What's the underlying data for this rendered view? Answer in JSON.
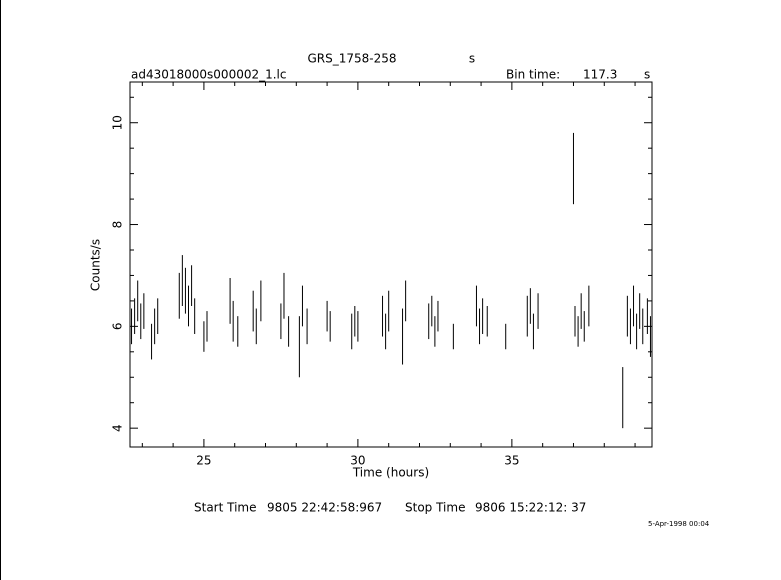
{
  "chart_data": {
    "type": "errorbar",
    "title": "GRS_1758-258",
    "title_unit": "s",
    "file_name": "ad43018000s000002_1.lc",
    "bin_time_label": "Bin time:",
    "bin_time": "117.3",
    "bin_time_unit": "s",
    "x_label": "Time (hours)",
    "y_label": "Counts/s",
    "start_label": "Start Time",
    "start_time": "9805 22:42:58:967",
    "stop_label": "Stop Time",
    "stop_time": "9806 15:22:12: 37",
    "date_stamp": "5-Apr-1998 00:04",
    "color": "#000000",
    "xlim": [
      22.6,
      39.55
    ],
    "ylim": [
      3.63,
      10.8
    ],
    "xticks": [
      25,
      30,
      35
    ],
    "yticks": [
      4,
      6,
      8,
      10
    ],
    "xminorticks": [
      23,
      24,
      26,
      27,
      28,
      29,
      31,
      32,
      33,
      34,
      36,
      37,
      38,
      39
    ],
    "yminorticks": [
      4.5,
      5,
      5.5,
      6.5,
      7,
      7.5,
      8.5,
      9,
      9.5,
      10.5
    ],
    "x": [
      22.65,
      22.75,
      22.85,
      22.95,
      23.05,
      23.3,
      23.4,
      23.5,
      24.2,
      24.3,
      24.4,
      24.5,
      24.6,
      24.7,
      25.0,
      25.1,
      25.85,
      25.95,
      26.1,
      26.6,
      26.7,
      26.85,
      27.5,
      27.6,
      27.75,
      28.1,
      28.2,
      28.35,
      29.0,
      29.1,
      29.8,
      29.9,
      30.0,
      30.8,
      30.9,
      31.0,
      31.45,
      31.55,
      32.3,
      32.4,
      32.5,
      32.6,
      33.1,
      33.85,
      33.95,
      34.05,
      34.2,
      34.8,
      35.5,
      35.6,
      35.7,
      35.85,
      37.0,
      37.05,
      37.15,
      37.25,
      37.35,
      37.5,
      38.6,
      38.75,
      38.85,
      38.95,
      39.05,
      39.15,
      39.25,
      39.4,
      39.5
    ],
    "values": [
      6.0,
      6.2,
      6.5,
      6.1,
      6.3,
      5.7,
      6.0,
      6.2,
      6.6,
      6.9,
      6.7,
      6.4,
      6.8,
      6.2,
      5.8,
      6.0,
      6.5,
      6.1,
      5.9,
      6.3,
      6.0,
      6.5,
      6.1,
      6.6,
      5.9,
      5.6,
      6.4,
      6.0,
      6.2,
      6.0,
      5.9,
      6.1,
      6.0,
      6.2,
      5.9,
      6.3,
      5.8,
      6.5,
      6.1,
      6.3,
      5.9,
      6.2,
      5.8,
      6.4,
      6.0,
      6.2,
      6.1,
      5.8,
      6.2,
      6.4,
      5.9,
      6.3,
      9.1,
      6.1,
      5.9,
      6.3,
      6.0,
      6.4,
      4.6,
      6.2,
      6.0,
      6.4,
      5.9,
      6.3,
      6.0,
      6.2,
      5.8
    ],
    "errors": [
      0.35,
      0.35,
      0.4,
      0.35,
      0.35,
      0.35,
      0.35,
      0.35,
      0.45,
      0.5,
      0.45,
      0.4,
      0.4,
      0.35,
      0.3,
      0.3,
      0.45,
      0.4,
      0.3,
      0.4,
      0.35,
      0.4,
      0.35,
      0.45,
      0.3,
      0.6,
      0.4,
      0.35,
      0.3,
      0.3,
      0.35,
      0.3,
      0.3,
      0.4,
      0.35,
      0.4,
      0.55,
      0.4,
      0.35,
      0.3,
      0.3,
      0.3,
      0.25,
      0.4,
      0.35,
      0.35,
      0.3,
      0.25,
      0.4,
      0.35,
      0.35,
      0.35,
      0.7,
      0.3,
      0.3,
      0.35,
      0.3,
      0.4,
      0.6,
      0.4,
      0.35,
      0.4,
      0.35,
      0.35,
      0.35,
      0.35,
      0.4
    ]
  }
}
